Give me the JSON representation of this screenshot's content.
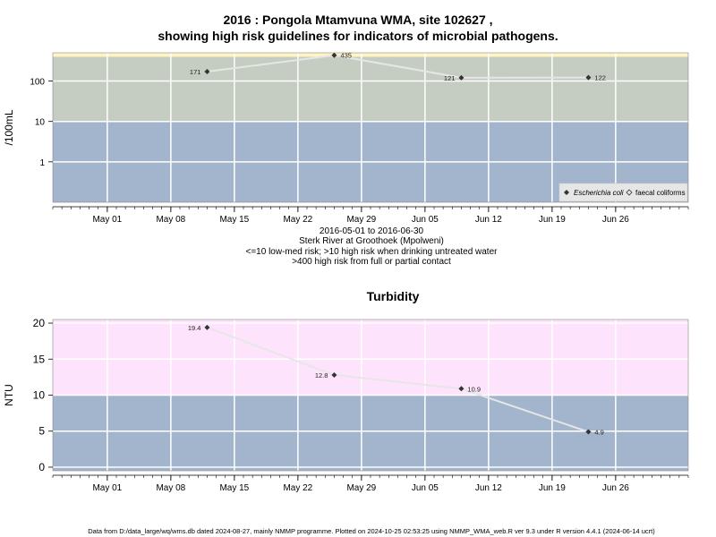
{
  "title_line1": "2016 : Pongola Mtamvuna WMA, site 102627 ,",
  "title_line2": "showing high risk guidelines for indicators of microbial pathogens.",
  "caption": {
    "line1": "2016-05-01 to 2016-06-30",
    "line2": "Sterk River at Groothoek (Mpolweni)",
    "line3": "<=10 low-med risk; >10 high risk when drinking untreated water",
    "line4": ">400 high risk from full or partial contact"
  },
  "footer": "Data from D:/data_large/wq/wms.db dated 2024-08-27, mainly NMMP programme. Plotted on 2024-10-25 02:53:25 using NMMP_WMA_web.R ver 9.3 under R version 4.4.1 (2024-06-14 ucrt)",
  "colors": {
    "low_risk_band": "#a3b5cd",
    "high_risk_band_top": "#c5cdc2",
    "very_high_risk_band": "#fff4c2",
    "turbidity_high_band": "#fde3fb",
    "line": "#e6e6e6",
    "grid": "#ffffff",
    "point": "#333333"
  },
  "chart_data": [
    {
      "type": "scatter",
      "title": "",
      "xlabel": "",
      "ylabel": "/100mL",
      "y_scale": "log",
      "ylim": [
        0.1,
        500
      ],
      "xlim": [
        "2016-04-25",
        "2016-07-04"
      ],
      "y_ticks": [
        1,
        10,
        100
      ],
      "y_tick_labels": [
        "1",
        "10",
        "100"
      ],
      "x_ticks": [
        "2016-05-01",
        "2016-05-08",
        "2016-05-15",
        "2016-05-22",
        "2016-05-29",
        "2016-06-05",
        "2016-06-12",
        "2016-06-19",
        "2016-06-26"
      ],
      "x_tick_labels": [
        "May 01",
        "May 08",
        "May 15",
        "May 22",
        "May 29",
        "Jun 05",
        "Jun 12",
        "Jun 19",
        "Jun 26"
      ],
      "grid": true,
      "bands": [
        {
          "from": 0.1,
          "to": 10,
          "color": "#a3b5cd"
        },
        {
          "from": 10,
          "to": 400,
          "color": "#c5cdc2"
        },
        {
          "from": 400,
          "to": 500,
          "color": "#fff4c2"
        }
      ],
      "legend_position": "bottom-right",
      "legend": [
        "Escherichia coli",
        "faecal coliforms"
      ],
      "series": [
        {
          "name": "Escherichia coli",
          "x": [
            "2016-05-12",
            "2016-05-26",
            "2016-06-09",
            "2016-06-23"
          ],
          "y": [
            171,
            435,
            121,
            122
          ],
          "labels": [
            "171",
            "435",
            "121",
            "122"
          ],
          "label_side": [
            "left",
            "right",
            "left",
            "right"
          ]
        }
      ]
    },
    {
      "type": "scatter",
      "title": "Turbidity",
      "xlabel": "",
      "ylabel": "NTU",
      "ylim": [
        -0.5,
        20.5
      ],
      "xlim": [
        "2016-04-25",
        "2016-07-04"
      ],
      "y_ticks": [
        0,
        5,
        10,
        15,
        20
      ],
      "y_tick_labels": [
        "0",
        "5",
        "10",
        "15",
        "20"
      ],
      "x_ticks": [
        "2016-05-01",
        "2016-05-08",
        "2016-05-15",
        "2016-05-22",
        "2016-05-29",
        "2016-06-05",
        "2016-06-12",
        "2016-06-19",
        "2016-06-26"
      ],
      "x_tick_labels": [
        "May 01",
        "May 08",
        "May 15",
        "May 22",
        "May 29",
        "Jun 05",
        "Jun 12",
        "Jun 19",
        "Jun 26"
      ],
      "grid": true,
      "bands": [
        {
          "from": -0.5,
          "to": 10,
          "color": "#a3b5cd"
        },
        {
          "from": 10,
          "to": 20.5,
          "color": "#fde3fb"
        }
      ],
      "series": [
        {
          "name": "",
          "x": [
            "2016-05-12",
            "2016-05-26",
            "2016-06-09",
            "2016-06-23"
          ],
          "y": [
            19.4,
            12.8,
            10.9,
            4.9
          ],
          "labels": [
            "19.4",
            "12.8",
            "10.9",
            "4.9"
          ],
          "label_side": [
            "left",
            "left",
            "right",
            "right"
          ]
        }
      ]
    }
  ]
}
